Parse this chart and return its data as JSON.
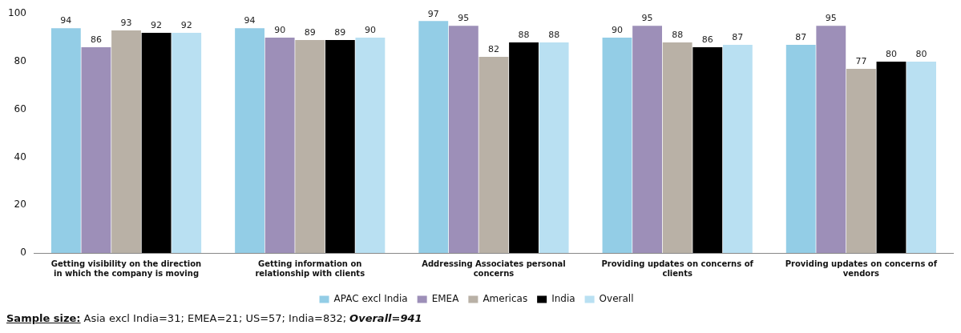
{
  "chart_data": {
    "type": "bar",
    "categories": [
      "Getting visibility on the direction in which the company is moving",
      "Getting information on relationship with clients",
      "Addressing Associates personal concerns",
      "Providing updates on concerns of clients",
      "Providing updates on concerns of vendors"
    ],
    "series": [
      {
        "name": "APAC excl India",
        "color": "#93cde6",
        "values": [
          94,
          94,
          97,
          90,
          87
        ]
      },
      {
        "name": "EMEA",
        "color": "#9d8fb8",
        "values": [
          86,
          90,
          95,
          95,
          95
        ]
      },
      {
        "name": "Americas",
        "color": "#b9b1a6",
        "values": [
          93,
          89,
          82,
          88,
          77
        ]
      },
      {
        "name": "India",
        "color": "#000000",
        "values": [
          92,
          89,
          88,
          86,
          80
        ]
      },
      {
        "name": "Overall",
        "color": "#b9e0f2",
        "values": [
          92,
          90,
          88,
          87,
          80
        ]
      }
    ],
    "ylim": [
      0,
      100
    ],
    "yticks": [
      0,
      20,
      40,
      60,
      80,
      100
    ],
    "grid": false,
    "legend": "bottom",
    "data_labels": true,
    "annotations": [
      "Sample size:",
      "Asia excl India=31; EMEA=21; US=57; India=832;",
      "Overall=941"
    ]
  }
}
